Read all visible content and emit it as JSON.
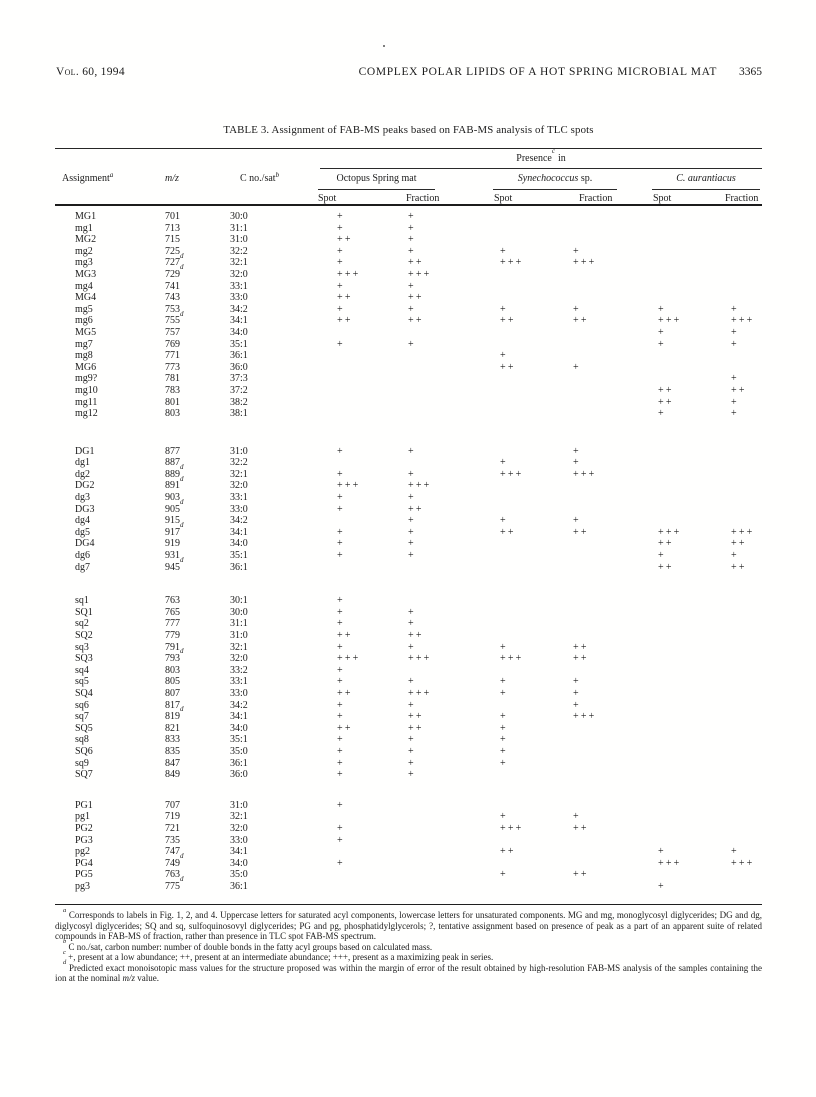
{
  "page": {
    "volume": "Vol. 60, 1994",
    "running_title": "COMPLEX POLAR LIPIDS OF A HOT SPRING MICROBIAL MAT",
    "page_number": "3365"
  },
  "table": {
    "title": "TABLE 3. Assignment of FAB-MS peaks based on FAB-MS analysis of TLC spots",
    "columns": {
      "assignment": "Assignment",
      "assignment_sup": "a",
      "mz": "m/z",
      "c_no_sat": "C no./sat",
      "c_no_sat_sup": "b",
      "presence": "Presence",
      "presence_sup": "c",
      "presence_in": "in",
      "spot": "Spot",
      "fraction": "Fraction"
    },
    "groups": [
      {
        "name": "Octopus Spring mat"
      },
      {
        "name_italic": "Synechococcus",
        "name_roman": " sp."
      },
      {
        "name_italic": "C. aurantiacus"
      }
    ],
    "sections": [
      {
        "rows": [
          {
            "a": "MG1",
            "mz": "701",
            "cs": "30:0",
            "p": [
              "+",
              "+",
              "",
              "",
              "",
              ""
            ]
          },
          {
            "a": "mg1",
            "mz": "713",
            "cs": "31:1",
            "p": [
              "+",
              "+",
              "",
              "",
              "",
              ""
            ]
          },
          {
            "a": "MG2",
            "mz": "715",
            "cs": "31:0",
            "p": [
              "++",
              "+",
              "",
              "",
              "",
              ""
            ]
          },
          {
            "a": "mg2",
            "mz": "725",
            "cs": "32:2",
            "p": [
              "+",
              "+",
              "+",
              "+",
              "",
              ""
            ]
          },
          {
            "a": "mg3",
            "mz": "727",
            "d": true,
            "cs": "32:1",
            "p": [
              "+",
              "++",
              "+++",
              "+++",
              "",
              ""
            ]
          },
          {
            "a": "MG3",
            "mz": "729",
            "d": true,
            "cs": "32:0",
            "p": [
              "+++",
              "+++",
              "",
              "",
              "",
              ""
            ]
          },
          {
            "a": "mg4",
            "mz": "741",
            "cs": "33:1",
            "p": [
              "+",
              "+",
              "",
              "",
              "",
              ""
            ]
          },
          {
            "a": "MG4",
            "mz": "743",
            "cs": "33:0",
            "p": [
              "++",
              "++",
              "",
              "",
              "",
              ""
            ]
          },
          {
            "a": "mg5",
            "mz": "753",
            "cs": "34:2",
            "p": [
              "+",
              "+",
              "+",
              "+",
              "+",
              "+"
            ]
          },
          {
            "a": "mg6",
            "mz": "755",
            "d": true,
            "cs": "34:1",
            "p": [
              "++",
              "++",
              "++",
              "++",
              "+++",
              "+++"
            ]
          },
          {
            "a": "MG5",
            "mz": "757",
            "cs": "34:0",
            "p": [
              "",
              "",
              "",
              "",
              "+",
              "+"
            ]
          },
          {
            "a": "mg7",
            "mz": "769",
            "cs": "35:1",
            "p": [
              "+",
              "+",
              "",
              "",
              "+",
              "+"
            ]
          },
          {
            "a": "mg8",
            "mz": "771",
            "cs": "36:1",
            "p": [
              "",
              "",
              "+",
              "",
              "",
              ""
            ]
          },
          {
            "a": "MG6",
            "mz": "773",
            "cs": "36:0",
            "p": [
              "",
              "",
              "++",
              "+",
              "",
              ""
            ]
          },
          {
            "a": "mg9?",
            "mz": "781",
            "cs": "37:3",
            "p": [
              "",
              "",
              "",
              "",
              "",
              "+"
            ]
          },
          {
            "a": "mg10",
            "mz": "783",
            "cs": "37:2",
            "p": [
              "",
              "",
              "",
              "",
              "++",
              "++"
            ]
          },
          {
            "a": "mg11",
            "mz": "801",
            "cs": "38:2",
            "p": [
              "",
              "",
              "",
              "",
              "++",
              "+"
            ]
          },
          {
            "a": "mg12",
            "mz": "803",
            "cs": "38:1",
            "p": [
              "",
              "",
              "",
              "",
              "+",
              "+"
            ]
          }
        ]
      },
      {
        "rows": [
          {
            "a": "DG1",
            "mz": "877",
            "cs": "31:0",
            "p": [
              "+",
              "+",
              "",
              "+",
              "",
              ""
            ]
          },
          {
            "a": "dg1",
            "mz": "887",
            "cs": "32:2",
            "p": [
              "",
              "",
              "+",
              "+",
              "",
              ""
            ]
          },
          {
            "a": "dg2",
            "mz": "889",
            "d": true,
            "cs": "32:1",
            "p": [
              "+",
              "+",
              "+++",
              "+++",
              "",
              ""
            ]
          },
          {
            "a": "DG2",
            "mz": "891",
            "d": true,
            "cs": "32:0",
            "p": [
              "+++",
              "+++",
              "",
              "",
              "",
              ""
            ]
          },
          {
            "a": "dg3",
            "mz": "903",
            "cs": "33:1",
            "p": [
              "+",
              "+",
              "",
              "",
              "",
              ""
            ]
          },
          {
            "a": "DG3",
            "mz": "905",
            "d": true,
            "cs": "33:0",
            "p": [
              "+",
              "++",
              "",
              "",
              "",
              ""
            ]
          },
          {
            "a": "dg4",
            "mz": "915",
            "cs": "34:2",
            "p": [
              "",
              "+",
              "+",
              "+",
              "",
              ""
            ]
          },
          {
            "a": "dg5",
            "mz": "917",
            "d": true,
            "cs": "34:1",
            "p": [
              "+",
              "+",
              "++",
              "++",
              "+++",
              "+++"
            ]
          },
          {
            "a": "DG4",
            "mz": "919",
            "cs": "34:0",
            "p": [
              "+",
              "+",
              "",
              "",
              "++",
              "++"
            ]
          },
          {
            "a": "dg6",
            "mz": "931",
            "cs": "35:1",
            "p": [
              "+",
              "+",
              "",
              "",
              "+",
              "+"
            ]
          },
          {
            "a": "dg7",
            "mz": "945",
            "d": true,
            "cs": "36:1",
            "p": [
              "",
              "",
              "",
              "",
              "++",
              "++"
            ]
          }
        ]
      },
      {
        "rows": [
          {
            "a": "sq1",
            "mz": "763",
            "cs": "30:1",
            "p": [
              "+",
              "",
              "",
              "",
              "",
              ""
            ]
          },
          {
            "a": "SQ1",
            "mz": "765",
            "cs": "30:0",
            "p": [
              "+",
              "+",
              "",
              "",
              "",
              ""
            ]
          },
          {
            "a": "sq2",
            "mz": "777",
            "cs": "31:1",
            "p": [
              "+",
              "+",
              "",
              "",
              "",
              ""
            ]
          },
          {
            "a": "SQ2",
            "mz": "779",
            "cs": "31:0",
            "p": [
              "++",
              "++",
              "",
              "",
              "",
              ""
            ]
          },
          {
            "a": "sq3",
            "mz": "791",
            "cs": "32:1",
            "p": [
              "+",
              "+",
              "+",
              "++",
              "",
              ""
            ]
          },
          {
            "a": "SQ3",
            "mz": "793",
            "d": true,
            "cs": "32:0",
            "p": [
              "+++",
              "+++",
              "+++",
              "++",
              "",
              ""
            ]
          },
          {
            "a": "sq4",
            "mz": "803",
            "cs": "33:2",
            "p": [
              "+",
              "",
              "",
              "",
              "",
              ""
            ]
          },
          {
            "a": "sq5",
            "mz": "805",
            "cs": "33:1",
            "p": [
              "+",
              "+",
              "+",
              "+",
              "",
              ""
            ]
          },
          {
            "a": "SQ4",
            "mz": "807",
            "cs": "33:0",
            "p": [
              "++",
              "+++",
              "+",
              "+",
              "",
              ""
            ]
          },
          {
            "a": "sq6",
            "mz": "817",
            "cs": "34:2",
            "p": [
              "+",
              "+",
              "",
              "+",
              "",
              ""
            ]
          },
          {
            "a": "sq7",
            "mz": "819",
            "d": true,
            "cs": "34:1",
            "p": [
              "+",
              "++",
              "+",
              "+++",
              "",
              ""
            ]
          },
          {
            "a": "SQ5",
            "mz": "821",
            "cs": "34:0",
            "p": [
              "++",
              "++",
              "+",
              "",
              "",
              ""
            ]
          },
          {
            "a": "sq8",
            "mz": "833",
            "cs": "35:1",
            "p": [
              "+",
              "+",
              "+",
              "",
              "",
              ""
            ]
          },
          {
            "a": "SQ6",
            "mz": "835",
            "cs": "35:0",
            "p": [
              "+",
              "+",
              "+",
              "",
              "",
              ""
            ]
          },
          {
            "a": "sq9",
            "mz": "847",
            "cs": "36:1",
            "p": [
              "+",
              "+",
              "+",
              "",
              "",
              ""
            ]
          },
          {
            "a": "SQ7",
            "mz": "849",
            "cs": "36:0",
            "p": [
              "+",
              "+",
              "",
              "",
              "",
              ""
            ]
          }
        ]
      },
      {
        "rows": [
          {
            "a": "PG1",
            "mz": "707",
            "cs": "31:0",
            "p": [
              "+",
              "",
              "",
              "",
              "",
              ""
            ]
          },
          {
            "a": "pg1",
            "mz": "719",
            "cs": "32:1",
            "p": [
              "",
              "",
              "+",
              "+",
              "",
              ""
            ]
          },
          {
            "a": "PG2",
            "mz": "721",
            "cs": "32:0",
            "p": [
              "+",
              "",
              "+++",
              "++",
              "",
              ""
            ]
          },
          {
            "a": "PG3",
            "mz": "735",
            "cs": "33:0",
            "p": [
              "+",
              "",
              "",
              "",
              "",
              ""
            ]
          },
          {
            "a": "pg2",
            "mz": "747",
            "cs": "34:1",
            "p": [
              "",
              "",
              "++",
              "",
              "+",
              "+"
            ]
          },
          {
            "a": "PG4",
            "mz": "749",
            "d": true,
            "cs": "34:0",
            "p": [
              "+",
              "",
              "",
              "",
              "+++",
              "+++"
            ]
          },
          {
            "a": "PG5",
            "mz": "763",
            "cs": "35:0",
            "p": [
              "",
              "",
              "+",
              "++",
              "",
              ""
            ]
          },
          {
            "a": "pg3",
            "mz": "775",
            "d": true,
            "cs": "36:1",
            "p": [
              "",
              "",
              "",
              "",
              "+",
              ""
            ]
          }
        ]
      }
    ]
  },
  "footnotes": [
    {
      "sup": "a",
      "text": "Corresponds to labels in Fig. 1, 2, and 4. Uppercase letters for saturated acyl components, lowercase letters for unsaturated components. MG and mg, monoglycosyl diglycerides; DG and dg, diglycosyl diglycerides; SQ and sq, sulfoquinosovyl diglycerides; PG and pg, phosphatidylglycerols; ?, tentative assignment based on presence of peak as a part of an apparent suite of related compounds in FAB-MS of fraction, rather than presence in TLC spot FAB-MS spectrum."
    },
    {
      "sup": "b",
      "text": "C no./sat, carbon number: number of double bonds in the fatty acyl groups based on calculated mass."
    },
    {
      "sup": "c",
      "text": "+, present at a low abundance; ++, present at an intermediate abundance; +++, present as a maximizing peak in series."
    },
    {
      "sup": "d",
      "text": "Predicted exact monoisotopic mass values for the structure proposed was within the margin of error of the result obtained by high-resolution FAB-MS analysis of the samples containing the ion at the nominal ",
      "italic": "m/z",
      "text2": " value."
    }
  ]
}
